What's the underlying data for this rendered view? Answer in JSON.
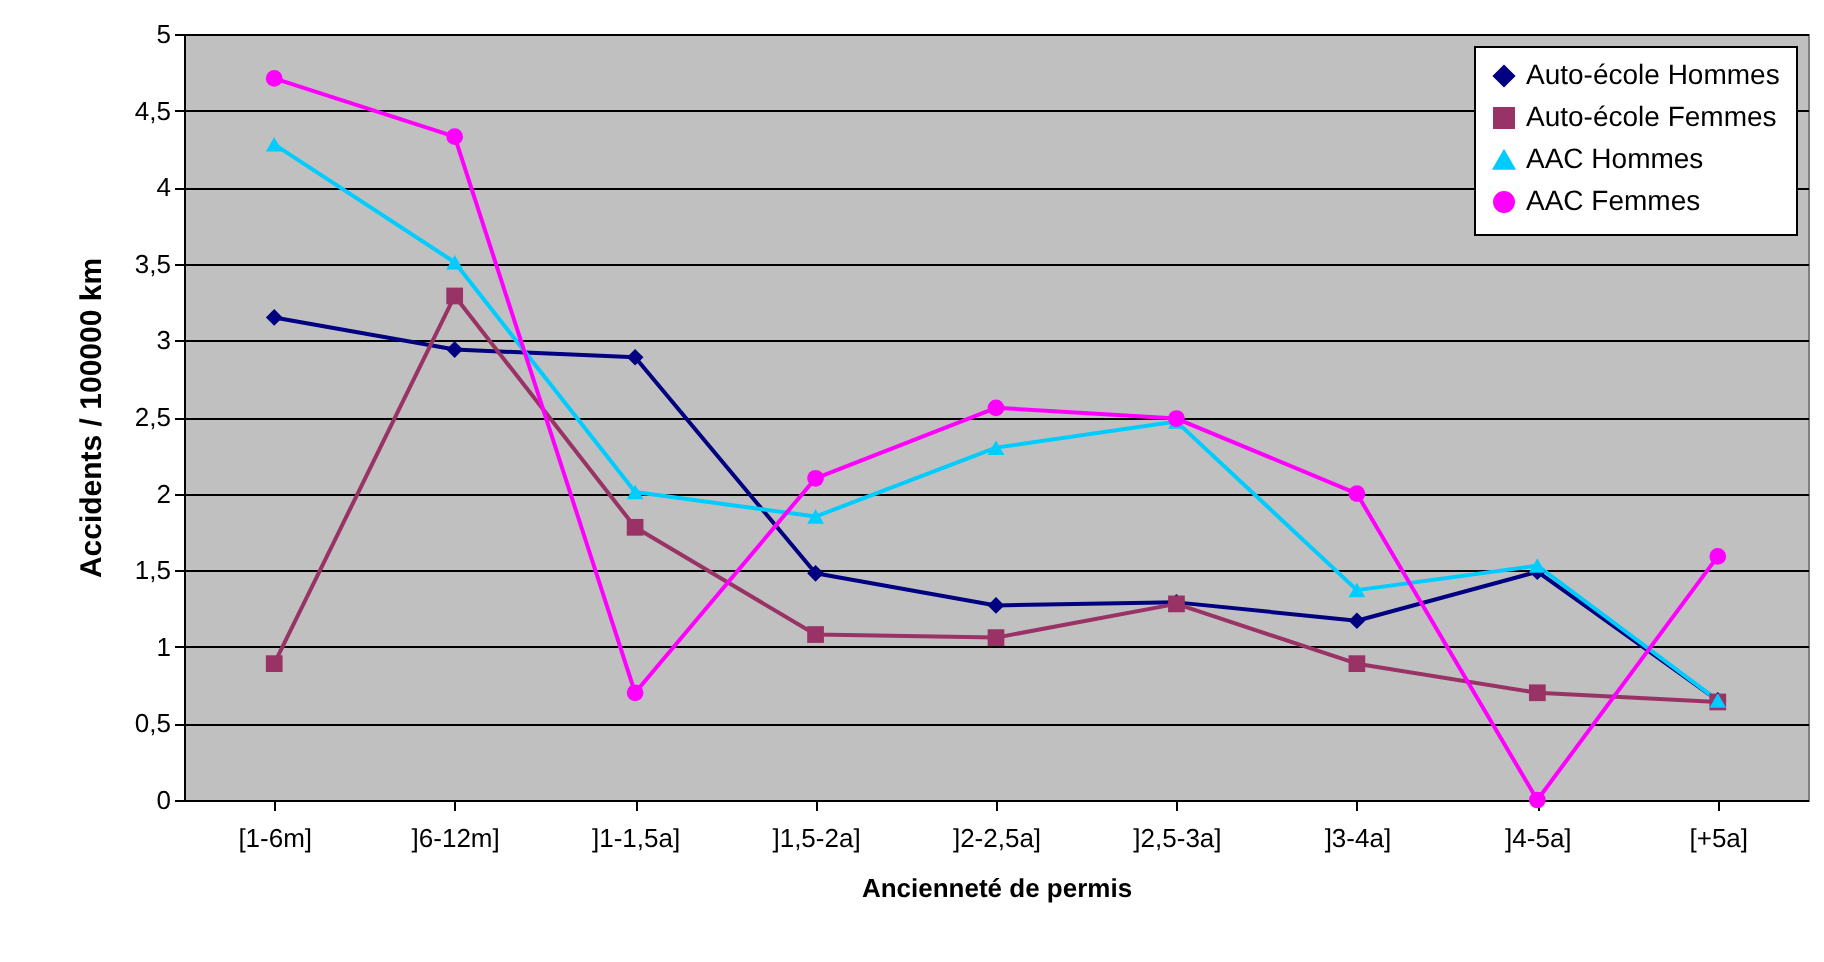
{
  "chart_data": {
    "type": "line",
    "xlabel": "Ancienneté de permis",
    "ylabel": "Accidents / 100000 km",
    "categories": [
      "[1-6m]",
      "]6-12m]",
      "]1-1,5a]",
      "]1,5-2a]",
      "]2-2,5a]",
      "]2,5-3a]",
      "]3-4a]",
      "]4-5a]",
      "[+5a]"
    ],
    "series": [
      {
        "name": "Auto-école Hommes",
        "color": "#000080",
        "marker": "diamond",
        "values": [
          3.15,
          2.94,
          2.89,
          1.48,
          1.27,
          1.29,
          1.17,
          1.49,
          0.65
        ]
      },
      {
        "name": "Auto-école Femmes",
        "color": "#993366",
        "marker": "square",
        "values": [
          0.89,
          3.29,
          1.78,
          1.08,
          1.06,
          1.28,
          0.89,
          0.7,
          0.64
        ]
      },
      {
        "name": "AAC Hommes",
        "color": "#00ccff",
        "marker": "triangle",
        "values": [
          4.28,
          3.51,
          2.01,
          1.85,
          2.3,
          2.47,
          1.37,
          1.53,
          0.65
        ]
      },
      {
        "name": "AAC Femmes",
        "color": "#ff00ff",
        "marker": "circle",
        "values": [
          4.71,
          4.33,
          0.7,
          2.1,
          2.56,
          2.49,
          2.0,
          0,
          1.59
        ]
      }
    ],
    "ylim": [
      0,
      5
    ],
    "yticks": [
      0,
      {
        "value": 0.5,
        "label": "0,5"
      },
      1,
      {
        "value": 1.5,
        "label": "1,5"
      },
      2,
      {
        "value": 2.5,
        "label": "2,5"
      },
      3,
      {
        "value": 3.5,
        "label": "3,5"
      },
      4,
      {
        "value": 4.5,
        "label": "4,5"
      },
      5
    ],
    "grid": "y",
    "legend": "top right",
    "line_style": "solid"
  }
}
